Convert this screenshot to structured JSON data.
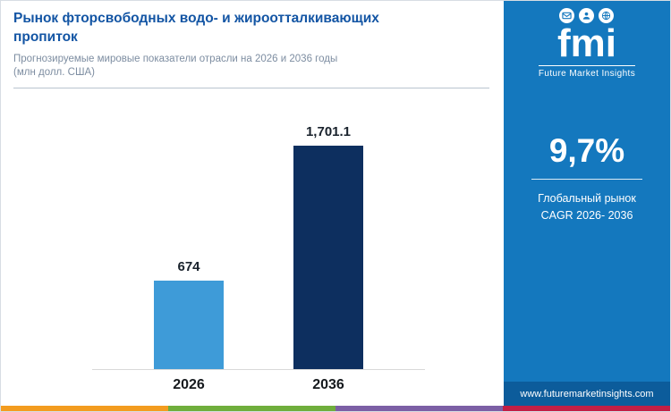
{
  "header": {
    "title": "Рынок фторсвободных водо- и жироотталкивающих пропиток",
    "subtitle": "Прогнозируемые мировые показатели отрасли на 2026 и 2036 годы",
    "unit_note": "(млн долл. США)"
  },
  "chart_data": {
    "type": "bar",
    "title": "Рынок фторсвободных водо- и жироотталкивающих пропиток",
    "subtitle": "Прогнозируемые мировые показатели отрасли на 2026 и 2036 годы (млн долл. США)",
    "categories": [
      "2026",
      "2036"
    ],
    "values": [
      674,
      1701.1
    ],
    "value_labels": [
      "674",
      "1,701.1"
    ],
    "bar_colors": [
      "#3E9BD8",
      "#0D2F5F"
    ],
    "ylabel": "млн долл. США",
    "ylim": [
      0,
      1800
    ],
    "grid": false,
    "legend": "none"
  },
  "sidebar": {
    "logo": {
      "text": "fmi",
      "caption": "Future Market Insights",
      "icons": [
        "mail-icon",
        "support-icon",
        "globe-icon"
      ]
    },
    "cagr": {
      "value": "9,7%",
      "label_line1": "Глобальный рынок",
      "label_line2": "CAGR 2026- 2036"
    },
    "website": "www.futuremarketinsights.com"
  },
  "colors": {
    "panel_blue": "#1478BE",
    "website_bar": "#0C5C9B",
    "title_blue": "#1355A4",
    "stripe": [
      "#F39C1F",
      "#6FAE3C",
      "#7C5FA5",
      "#C21F45"
    ]
  }
}
